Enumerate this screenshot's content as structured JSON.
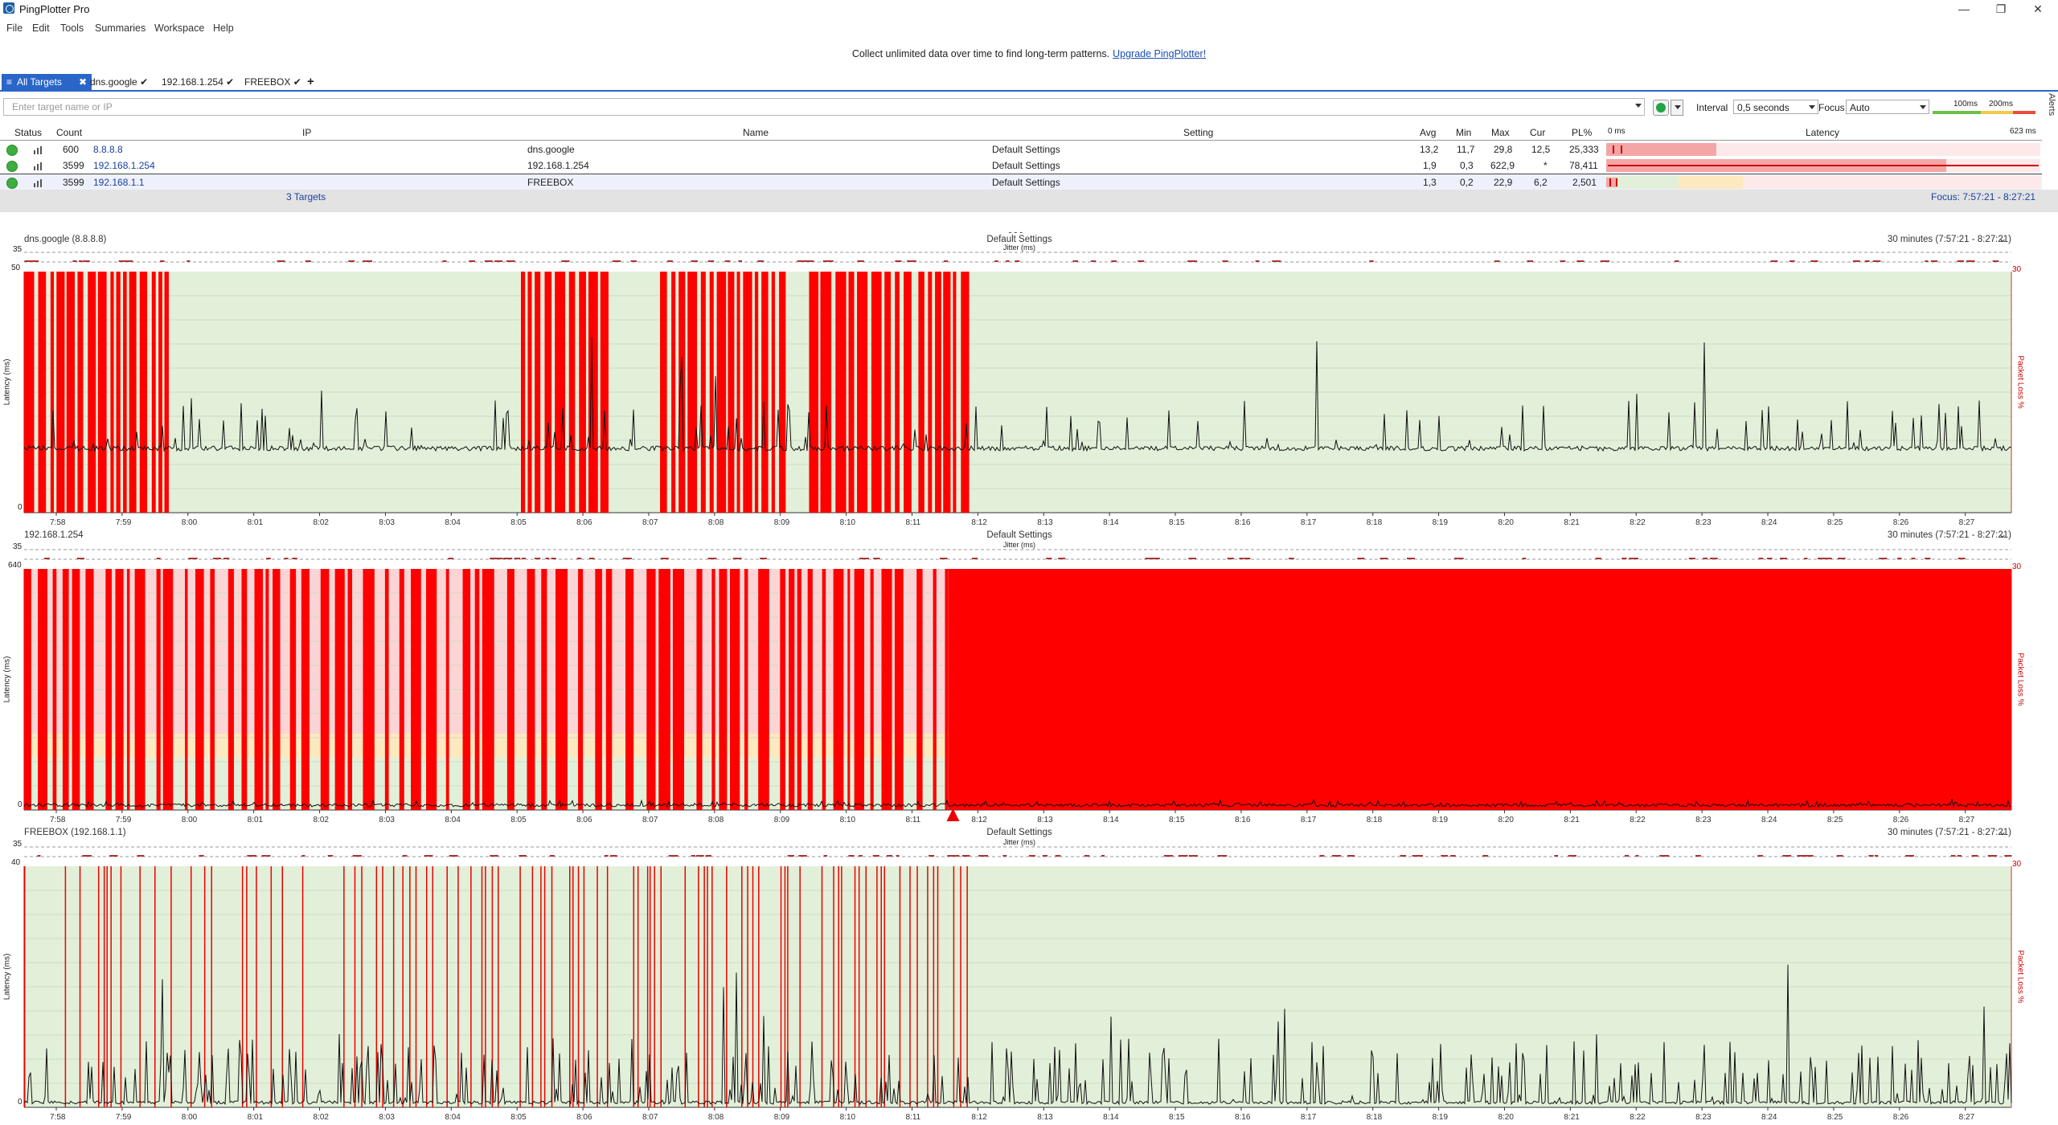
{
  "window": {
    "title": "PingPlotter Pro",
    "minimize": "—",
    "restore": "❐",
    "close": "✕"
  },
  "menu": [
    "File",
    "Edit",
    "Tools",
    "Summaries",
    "Workspace",
    "Help"
  ],
  "banner": {
    "text": "Collect unlimited data over time to find long-term patterns.",
    "link": "Upgrade PingPlotter!"
  },
  "tabs": {
    "all": "All Targets",
    "targets": [
      {
        "label": "dns.google"
      },
      {
        "label": "192.168.1.254"
      },
      {
        "label": "FREEBOX"
      }
    ],
    "add": "+"
  },
  "toolbar": {
    "placeholder": "Enter target name or IP",
    "interval_label": "Interval",
    "interval_value": "0,5 seconds",
    "focus_label": "Focus",
    "focus_value": "Auto",
    "scale_100": "100ms",
    "scale_200": "200ms",
    "alerts": "Alerts"
  },
  "table": {
    "headers": [
      "Status",
      "Count",
      "IP",
      "Name",
      "Setting",
      "Avg",
      "Min",
      "Max",
      "Cur",
      "PL%",
      "0 ms",
      "Latency",
      "623 ms"
    ],
    "rows": [
      {
        "count": "600",
        "ip": "8.8.8.8",
        "name": "dns.google",
        "setting": "Default Settings",
        "avg": "13,2",
        "min": "11,7",
        "max": "29,8",
        "cur": "12,5",
        "pl": "25,333",
        "pl_fraction": 0.253
      },
      {
        "count": "3599",
        "ip": "192.168.1.254",
        "name": "192.168.1.254",
        "setting": "Default Settings",
        "avg": "1,9",
        "min": "0,3",
        "max": "622,9",
        "cur": "*",
        "pl": "78,411",
        "pl_fraction": 0.784
      },
      {
        "count": "3599",
        "ip": "192.168.1.1",
        "name": "FREEBOX",
        "setting": "Default Settings",
        "avg": "1,3",
        "min": "0,2",
        "max": "22,9",
        "cur": "6,2",
        "pl": "2,501",
        "pl_fraction": 0.025
      }
    ],
    "summary": "3 Targets",
    "focus": "Focus: 7:57:21 - 8:27:21"
  },
  "graphs": [
    {
      "title": "dns.google (8.8.8.8)",
      "setting": "Default Settings",
      "range": "30 minutes (7:57:21 - 8:27:21)",
      "jitter_label": "Jitter (ms)",
      "jitter_max": "35",
      "y_max": "50",
      "y_min": "0",
      "pl_max": "30",
      "ylabel": "Latency (ms)",
      "plabel": "Packet Loss %"
    },
    {
      "title": "192.168.1.254",
      "setting": "Default Settings",
      "range": "30 minutes (7:57:21 - 8:27:21)",
      "jitter_label": "Jitter (ms)",
      "jitter_max": "35",
      "y_max": "640",
      "y_min": "0",
      "pl_max": "30",
      "ylabel": "Latency (ms)",
      "plabel": "Packet Loss %"
    },
    {
      "title": "FREEBOX (192.168.1.1)",
      "setting": "Default Settings",
      "range": "30 minutes (7:57:21 - 8:27:21)",
      "jitter_label": "Jitter (ms)",
      "jitter_max": "35",
      "y_max": "40",
      "y_min": "0",
      "pl_max": "30",
      "ylabel": "Latency (ms)",
      "plabel": "Packet Loss %"
    }
  ],
  "time_ticks": [
    "7:58",
    "7:59",
    "8:00",
    "8:01",
    "8:02",
    "8:03",
    "8:04",
    "8:05",
    "8:06",
    "8:07",
    "8:08",
    "8:09",
    "8:10",
    "8:11",
    "8:12",
    "8:13",
    "8:14",
    "8:15",
    "8:16",
    "8:17",
    "8:18",
    "8:19",
    "8:20",
    "8:21",
    "8:22",
    "8:23",
    "8:24",
    "8:25",
    "8:26",
    "8:27"
  ],
  "colors": {
    "accent": "#2a66c8",
    "loss": "#ff0000",
    "good_bg": "#e2f0d9",
    "warn_bg": "#fde9c0",
    "bad_bg": "#fbd5d5",
    "status_ok": "#3dae3d"
  }
}
